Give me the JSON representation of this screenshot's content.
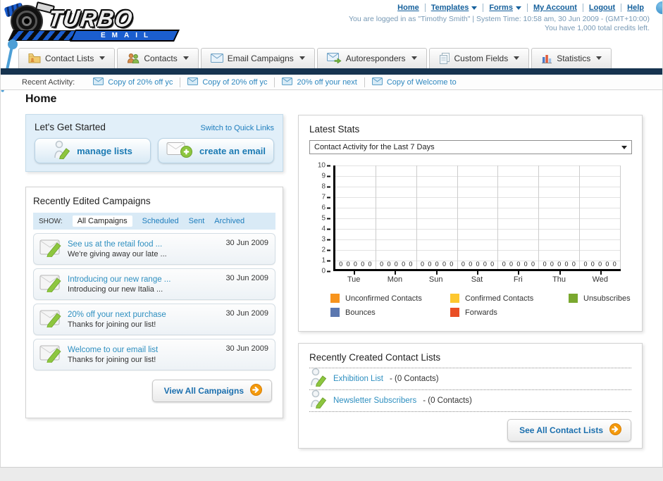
{
  "header": {
    "logo": {
      "title": "TURBO",
      "subtitle": "EMAIL"
    },
    "nav": [
      {
        "label": "Home",
        "dropdown": false
      },
      {
        "label": "Templates",
        "dropdown": true
      },
      {
        "label": "Forms",
        "dropdown": true
      },
      {
        "label": "My Account",
        "dropdown": false
      },
      {
        "label": "Logout",
        "dropdown": false
      },
      {
        "label": "Help",
        "dropdown": false
      }
    ],
    "login_info": "You are logged in as \"Timothy Smith\" | System Time: 10:58 am, 30 Jun 2009 - (GMT+10:00)",
    "credits_info": "You have 1,000 total credits left."
  },
  "tabs": [
    {
      "label": "Contact Lists",
      "icon": "contact-folder-icon"
    },
    {
      "label": "Contacts",
      "icon": "people-icon"
    },
    {
      "label": "Email Campaigns",
      "icon": "envelope-icon"
    },
    {
      "label": "Autoresponders",
      "icon": "envelope-arrow-icon"
    },
    {
      "label": "Custom Fields",
      "icon": "documents-icon"
    },
    {
      "label": "Statistics",
      "icon": "bar-chart-icon"
    }
  ],
  "recent_activity": {
    "label": "Recent Activity:",
    "items": [
      "Copy of 20% off yc",
      "Copy of 20% off yc",
      "20% off your next",
      "Copy of Welcome to"
    ]
  },
  "page_title": "Home",
  "get_started": {
    "title": "Let's Get Started",
    "switch_link": "Switch to Quick Links",
    "buttons": [
      {
        "label": "manage lists",
        "icon": "person-pencil-icon"
      },
      {
        "label": "create an email",
        "icon": "envelope-plus-icon"
      }
    ]
  },
  "campaigns": {
    "title": "Recently Edited Campaigns",
    "show_label": "SHOW:",
    "filters": [
      {
        "label": "All Campaigns",
        "active": true
      },
      {
        "label": "Scheduled",
        "active": false
      },
      {
        "label": "Sent",
        "active": false
      },
      {
        "label": "Archived",
        "active": false
      }
    ],
    "items": [
      {
        "title": "See us at the retail food ...",
        "subtitle": "We're giving away our late ...",
        "date": "30 Jun 2009"
      },
      {
        "title": "Introducing our new range ...",
        "subtitle": "Introducing our new Italia ...",
        "date": "30 Jun 2009"
      },
      {
        "title": "20% off your next purchase",
        "subtitle": "Thanks for joining our list!",
        "date": "30 Jun 2009"
      },
      {
        "title": "Welcome to our email list",
        "subtitle": "Thanks for joining our list!",
        "date": "30 Jun 2009"
      }
    ],
    "view_all_label": "View All Campaigns"
  },
  "latest_stats": {
    "title": "Latest Stats",
    "dropdown_value": "Contact Activity for the Last 7 Days"
  },
  "chart_data": {
    "type": "bar",
    "title": "Contact Activity for the Last 7 Days",
    "categories": [
      "Tue",
      "Mon",
      "Sun",
      "Sat",
      "Fri",
      "Thu",
      "Wed"
    ],
    "series": [
      {
        "name": "Unconfirmed Contacts",
        "color": "#f7941d",
        "values": [
          0,
          0,
          0,
          0,
          0,
          0,
          0
        ]
      },
      {
        "name": "Confirmed Contacts",
        "color": "#fdc72f",
        "values": [
          0,
          0,
          0,
          0,
          0,
          0,
          0
        ]
      },
      {
        "name": "Unsubscribes",
        "color": "#7aa82f",
        "values": [
          0,
          0,
          0,
          0,
          0,
          0,
          0
        ]
      },
      {
        "name": "Bounces",
        "color": "#5b77af",
        "values": [
          0,
          0,
          0,
          0,
          0,
          0,
          0
        ]
      },
      {
        "name": "Forwards",
        "color": "#e94e25",
        "values": [
          0,
          0,
          0,
          0,
          0,
          0,
          0
        ]
      }
    ],
    "ylim": [
      0,
      10
    ],
    "yticks": [
      0,
      1,
      2,
      3,
      4,
      5,
      6,
      7,
      8,
      9,
      10
    ],
    "grid": true,
    "legend_position": "bottom",
    "zero_value_labels_shown": true
  },
  "contact_lists": {
    "title": "Recently Created Contact Lists",
    "items": [
      {
        "name": "Exhibition List",
        "detail": "- (0 Contacts)"
      },
      {
        "name": "Newsletter Subscribers",
        "detail": "- (0 Contacts)"
      }
    ],
    "see_all_label": "See All Contact Lists"
  },
  "colors": {
    "link_blue": "#1d7dbd",
    "navy_bar": "#16334f",
    "panel_blue_bg": "#e1eff9",
    "accent_orange": "#f49a0c"
  }
}
